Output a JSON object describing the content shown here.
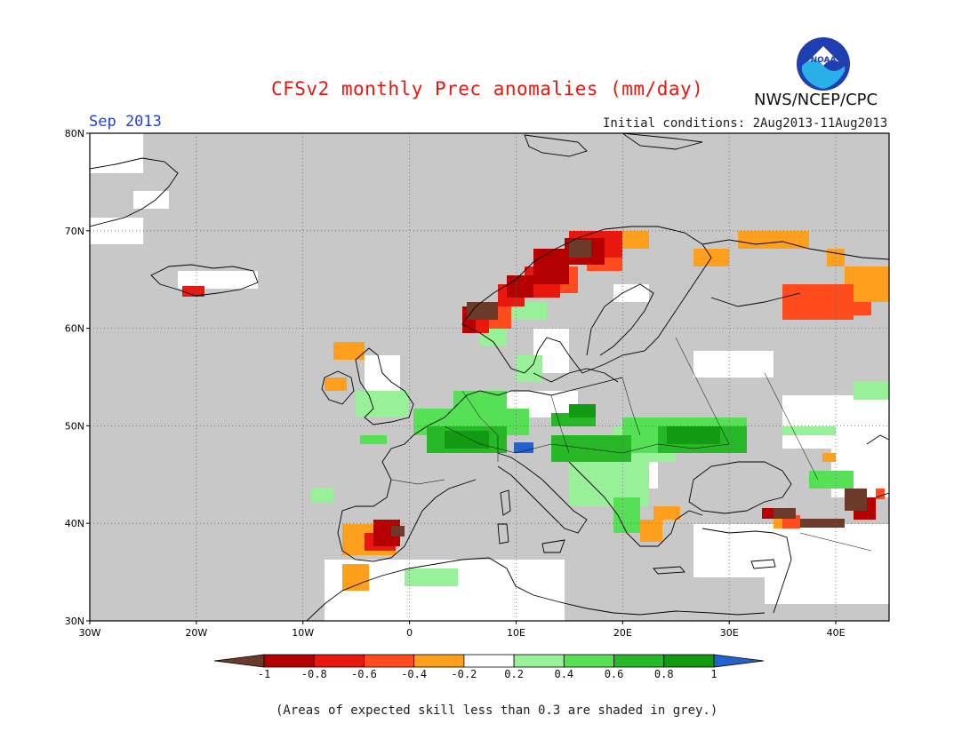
{
  "title": "CFSv2 monthly Prec anomalies (mm/day)",
  "period": "Sep 2013",
  "initial_conditions": "Initial conditions: 2Aug2013-11Aug2013",
  "agency": "NWS/NCEP/CPC",
  "logo_text": "NOAA",
  "footnote": "(Areas of expected skill less than 0.3 are shaded in grey.)",
  "map": {
    "lon_range": [
      -30,
      45
    ],
    "lat_range": [
      30,
      80
    ],
    "lat_labels": [
      "80N",
      "70N",
      "60N",
      "50N",
      "40N",
      "30N"
    ],
    "lon_labels": [
      "30W",
      "20W",
      "10W",
      "0",
      "10E",
      "20E",
      "30E",
      "40E"
    ],
    "grey_color": "#c8c8c8"
  },
  "colorbar": {
    "labels": [
      "-1",
      "-0.8",
      "-0.6",
      "-0.4",
      "-0.2",
      "0.2",
      "0.4",
      "0.6",
      "0.8",
      "1"
    ],
    "colors": [
      "#6b3a2a",
      "#b40000",
      "#e8180e",
      "#ff4b1e",
      "#ff9f1e",
      "#ffffff",
      "#98f098",
      "#55e055",
      "#27b827",
      "#139a13",
      "#2462cf"
    ]
  }
}
